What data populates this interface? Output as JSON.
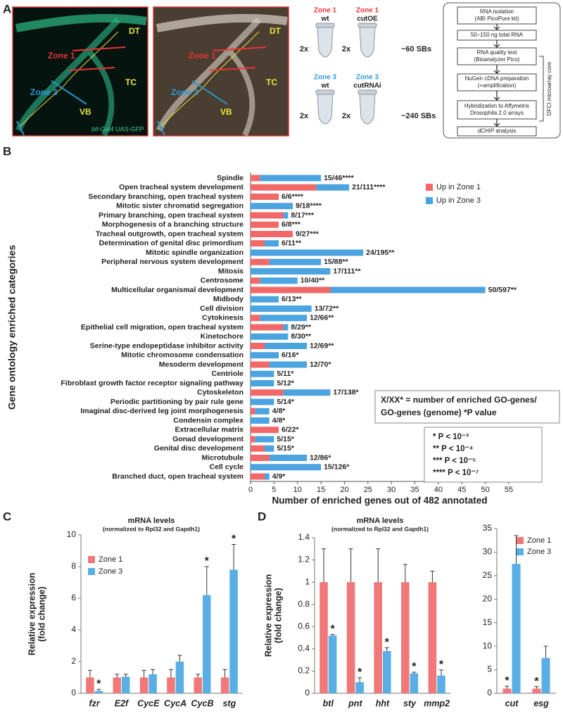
{
  "panel_a": {
    "panel_label": "A",
    "image_1": {
      "labels": [
        "DT",
        "Zone 1",
        "TC",
        "Zone 3",
        "VB"
      ],
      "caption": "btl-Gal4 UAS-GFP"
    },
    "image_2": {
      "labels": [
        "DT",
        "Zone 1",
        "TC",
        "Zone 3",
        "VB"
      ]
    },
    "samples": [
      {
        "zone": "Zone 1",
        "genotype": "wt",
        "count": "2x"
      },
      {
        "zone": "Zone 1",
        "genotype": "cutOE",
        "count": "2x"
      },
      {
        "zone": "Zone 3",
        "genotype": "wt",
        "count": "2x"
      },
      {
        "zone": "Zone 3",
        "genotype": "cutRNAi",
        "count": "2x"
      }
    ],
    "sample_sizes": [
      "~60 SBs",
      "~240 SBs"
    ],
    "flowchart": {
      "steps": [
        [
          "RNA isolation",
          "(ABI PicoPure kit)"
        ],
        [
          "50–150 ng total RNA"
        ],
        [
          "RNA quality test",
          "(Bioanalyzer Pico)"
        ],
        [
          "NuGen cDNA preparation",
          "(+amplification)"
        ],
        [
          "Hybridization to Affymetrix",
          "Drosophila 2.0 arrays"
        ],
        [
          "dCHIP analysis"
        ]
      ],
      "side_label": "DFCI microarray core"
    }
  },
  "chart_data": [
    {
      "panel_label": "B",
      "type": "bar",
      "orientation": "horizontal",
      "stacked": true,
      "x_label": "Number of enriched genes out of 482 annotated",
      "y_label": "Gene ontology enriched categories",
      "categories": [
        "Spindle",
        "Open tracheal system development",
        "Secondary branching, open tracheal system",
        "Mitotic sister chromatid segregation",
        "Primary branching, open tracheal system",
        "Morphogenesis of a branching structure",
        "Tracheal outgrowth, open tracheal system",
        "Determination of genital disc primordium",
        "Mitotic spindle organization",
        "Peripheral nervous system development",
        "Mitosis",
        "Centrosome",
        "Multicellular organismal development",
        "Midbody",
        "Cell division",
        "Cytokinesis",
        "Epithelial cell migration, open tracheal system",
        "Kinetochore",
        "Serine-type endopeptidase inhibitor activity",
        "Mitotic chromosome condensation",
        "Mesoderm development",
        "Centriole",
        "Fibroblast growth factor receptor signaling pathway",
        "Cytoskeleton",
        "Periodic partitioning by pair rule gene",
        "Imaginal disc-derived leg joint morphogenesis",
        "Condensin complex",
        "Extracellular matrix",
        "Gonad development",
        "Genital disc development",
        "Microtubule",
        "Cell cycle",
        "Branched duct, open tracheal system"
      ],
      "series": [
        {
          "name": "Up in Zone 1",
          "color": "#f26868",
          "values": [
            2,
            14,
            6,
            0,
            7,
            6,
            9,
            3,
            0,
            4,
            0,
            2,
            17,
            0,
            0,
            2,
            7,
            0,
            3,
            0,
            4,
            0,
            0,
            7,
            0,
            1,
            0,
            6,
            1,
            3,
            4,
            0,
            3
          ]
        },
        {
          "name": "Up in Zone 3",
          "color": "#4ba3e0",
          "values": [
            13,
            7,
            0,
            9,
            1,
            0,
            0,
            3,
            24,
            11,
            17,
            8,
            33,
            6,
            13,
            10,
            1,
            8,
            9,
            6,
            8,
            5,
            5,
            10,
            5,
            3,
            4,
            0,
            4,
            2,
            8,
            15,
            1
          ]
        }
      ],
      "bar_labels": [
        "15/46****",
        "21/111****",
        "6/6****",
        "9/18****",
        "8/17***",
        "6/8***",
        "9/27***",
        "6/11**",
        "24/195**",
        "15/88**",
        "17/111**",
        "10/40**",
        "50/597**",
        "6/13**",
        "13/72**",
        "12/66**",
        "8/29**",
        "8/30**",
        "12/69**",
        "6/16*",
        "12/70*",
        "5/11*",
        "5/12*",
        "17/138*",
        "5/14*",
        "4/8*",
        "4/8*",
        "6/22*",
        "5/15*",
        "5/15*",
        "12/86*",
        "15/126*",
        "4/9*"
      ],
      "xlim": [
        0,
        55
      ],
      "xticks": [
        0,
        5,
        10,
        15,
        20,
        25,
        30,
        35,
        40,
        45,
        50,
        55
      ],
      "legend": "upper right",
      "notes": {
        "definition": [
          "X/XX* = number of enriched GO-genes/",
          "GO-genes (genome) *P value"
        ],
        "p_values": [
          "* P < 10⁻³",
          "** P < 10⁻⁴",
          "*** P < 10⁻⁵",
          "**** P < 10⁻⁷"
        ]
      }
    },
    {
      "panel_label": "C",
      "type": "bar",
      "title": "mRNA levels",
      "subtitle": "(normalized to Rpl32 and Gapdh1)",
      "y_label": [
        "Relative expression",
        "(fold change)"
      ],
      "categories": [
        "fzr",
        "E2f",
        "CycE",
        "CycA",
        "CycB",
        "stg"
      ],
      "series": [
        {
          "name": "Zone 1",
          "color": "#f07878",
          "values": [
            1,
            1,
            1,
            1,
            1,
            1
          ],
          "errors": [
            0.45,
            0.2,
            0.45,
            0.5,
            0.2,
            0.5
          ]
        },
        {
          "name": "Zone 3",
          "color": "#5aaee6",
          "values": [
            0.15,
            1.05,
            1.2,
            2,
            6.2,
            7.8
          ],
          "errors": [
            0.1,
            0.15,
            0.3,
            0.4,
            1.8,
            1.6
          ],
          "significance": [
            "*",
            null,
            null,
            null,
            "*",
            "*"
          ]
        }
      ],
      "ylim": [
        0,
        10
      ],
      "yticks": [
        0,
        2,
        4,
        6,
        8,
        10
      ],
      "legend": "upper left"
    },
    {
      "panel_label": "D",
      "type": "bar",
      "title": "mRNA levels",
      "subtitle": "(normalized to Rpl32 and Gapdh1)",
      "y_label": [
        "Relative expression",
        "(fold change)"
      ],
      "categories": [
        "btl",
        "pnt",
        "hht",
        "sty",
        "mmp2"
      ],
      "series": [
        {
          "color": "#f07878",
          "values": [
            1,
            1,
            1,
            1,
            1
          ],
          "errors": [
            0.3,
            0.3,
            0.3,
            0.16,
            0.1
          ]
        },
        {
          "color": "#5aaee6",
          "values": [
            0.52,
            0.1,
            0.38,
            0.18,
            0.16
          ],
          "errors": [
            0.01,
            0.04,
            0.03,
            0.01,
            0.05
          ],
          "significance": [
            "*",
            "*",
            "*",
            "*",
            "*"
          ]
        }
      ],
      "ylim": [
        0,
        1.4
      ],
      "yticks": [
        0,
        0.2,
        0.4,
        0.6,
        0.8,
        1,
        1.2,
        1.4
      ]
    },
    {
      "type": "bar",
      "categories": [
        "cut",
        "esg"
      ],
      "series": [
        {
          "name": "Zone 1",
          "color": "#f07878",
          "values": [
            1,
            1
          ],
          "errors": [
            0.5,
            0.4
          ],
          "significance": [
            "*",
            "*"
          ]
        },
        {
          "name": "Zone 3",
          "color": "#5aaee6",
          "values": [
            27.5,
            7.5
          ],
          "errors": [
            6,
            2.5
          ]
        }
      ],
      "ylim": [
        0,
        35
      ],
      "yticks": [
        0,
        5,
        10,
        15,
        20,
        25,
        30,
        35
      ],
      "legend": "upper right"
    }
  ]
}
